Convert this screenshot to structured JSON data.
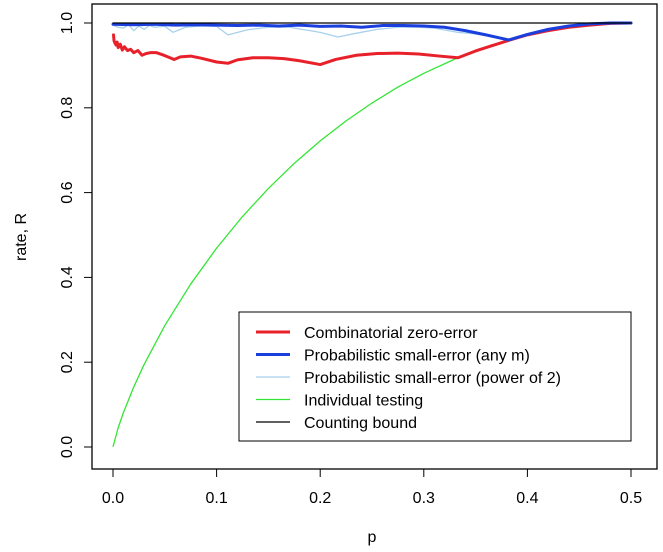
{
  "chart_data": {
    "type": "line",
    "title": "",
    "xlabel": "p",
    "ylabel": "rate, R",
    "xlim": [
      0,
      0.5
    ],
    "ylim": [
      0,
      1
    ],
    "xticks": [
      0.0,
      0.1,
      0.2,
      0.3,
      0.4,
      0.5
    ],
    "xtick_labels": [
      "0.0",
      "0.1",
      "0.2",
      "0.3",
      "0.4",
      "0.5"
    ],
    "yticks": [
      0.0,
      0.2,
      0.4,
      0.6,
      0.8,
      1.0
    ],
    "ytick_labels": [
      "0.0",
      "0.2",
      "0.4",
      "0.6",
      "0.8",
      "1.0"
    ],
    "grid": false,
    "legend_position": "bottom-right",
    "series": [
      {
        "name": "Combinatorial zero-error",
        "color": "#e8202a",
        "width": 3,
        "x": [
          0.0005,
          0.001,
          0.002,
          0.003,
          0.004,
          0.005,
          0.007,
          0.009,
          0.011,
          0.014,
          0.017,
          0.02,
          0.024,
          0.028,
          0.032,
          0.036,
          0.042,
          0.048,
          0.055,
          0.059,
          0.065,
          0.075,
          0.085,
          0.1,
          0.111,
          0.12,
          0.135,
          0.15,
          0.165,
          0.18,
          0.2,
          0.215,
          0.235,
          0.255,
          0.275,
          0.295,
          0.315,
          0.333,
          0.35,
          0.365,
          0.382,
          0.4,
          0.42,
          0.44,
          0.46,
          0.48,
          0.5
        ],
        "y": [
          0.972,
          0.958,
          0.952,
          0.948,
          0.955,
          0.942,
          0.95,
          0.936,
          0.944,
          0.935,
          0.938,
          0.93,
          0.935,
          0.924,
          0.928,
          0.93,
          0.93,
          0.925,
          0.918,
          0.914,
          0.92,
          0.922,
          0.917,
          0.908,
          0.905,
          0.913,
          0.918,
          0.918,
          0.916,
          0.911,
          0.902,
          0.914,
          0.924,
          0.928,
          0.929,
          0.927,
          0.922,
          0.918,
          0.934,
          0.946,
          0.959,
          0.972,
          0.982,
          0.99,
          0.995,
          0.999,
          1.0
        ]
      },
      {
        "name": "Probabilistic small-error (any m)",
        "color": "#1a3fdc",
        "width": 3,
        "x": [
          0.0,
          0.02,
          0.04,
          0.06,
          0.08,
          0.1,
          0.12,
          0.14,
          0.16,
          0.18,
          0.2,
          0.22,
          0.24,
          0.26,
          0.28,
          0.3,
          0.32,
          0.34,
          0.36,
          0.382,
          0.4,
          0.42,
          0.44,
          0.46,
          0.48,
          0.5
        ],
        "y": [
          0.997,
          0.996,
          0.997,
          0.995,
          0.996,
          0.995,
          0.994,
          0.995,
          0.993,
          0.995,
          0.992,
          0.993,
          0.99,
          0.994,
          0.994,
          0.993,
          0.99,
          0.982,
          0.972,
          0.96,
          0.973,
          0.985,
          0.993,
          0.998,
          1.0,
          1.0
        ]
      },
      {
        "name": "Probabilistic small-error (power of 2)",
        "color": "#a8d0ec",
        "width": 1.3,
        "x": [
          0.0,
          0.005,
          0.01,
          0.015,
          0.02,
          0.025,
          0.03,
          0.035,
          0.04,
          0.05,
          0.058,
          0.07,
          0.085,
          0.1,
          0.111,
          0.13,
          0.15,
          0.17,
          0.19,
          0.2,
          0.217,
          0.235,
          0.255,
          0.275,
          0.295,
          0.31,
          0.333,
          0.35,
          0.365,
          0.382,
          0.4,
          0.42,
          0.44,
          0.46,
          0.48,
          0.5
        ],
        "y": [
          0.995,
          0.99,
          0.988,
          0.996,
          0.982,
          0.993,
          0.985,
          0.994,
          0.99,
          0.992,
          0.978,
          0.99,
          0.993,
          0.992,
          0.972,
          0.984,
          0.99,
          0.99,
          0.982,
          0.978,
          0.967,
          0.976,
          0.985,
          0.99,
          0.99,
          0.988,
          0.978,
          0.974,
          0.968,
          0.96,
          0.973,
          0.985,
          0.993,
          0.998,
          1.0,
          1.0
        ]
      },
      {
        "name": "Individual testing",
        "color": "#33e633",
        "width": 1.3,
        "x": [
          0.0001,
          0.005,
          0.01,
          0.02,
          0.03,
          0.05,
          0.075,
          0.1,
          0.125,
          0.15,
          0.175,
          0.2,
          0.225,
          0.25,
          0.275,
          0.3,
          0.333
        ],
        "y": [
          0.0015,
          0.0454,
          0.0808,
          0.1414,
          0.1944,
          0.2864,
          0.3843,
          0.469,
          0.5436,
          0.6098,
          0.669,
          0.7219,
          0.7692,
          0.8113,
          0.8489,
          0.8813,
          0.9183
        ]
      },
      {
        "name": "Counting bound",
        "color": "#000000",
        "width": 1.3,
        "x": [
          0.0,
          0.5
        ],
        "y": [
          1.0,
          1.0
        ]
      }
    ]
  }
}
